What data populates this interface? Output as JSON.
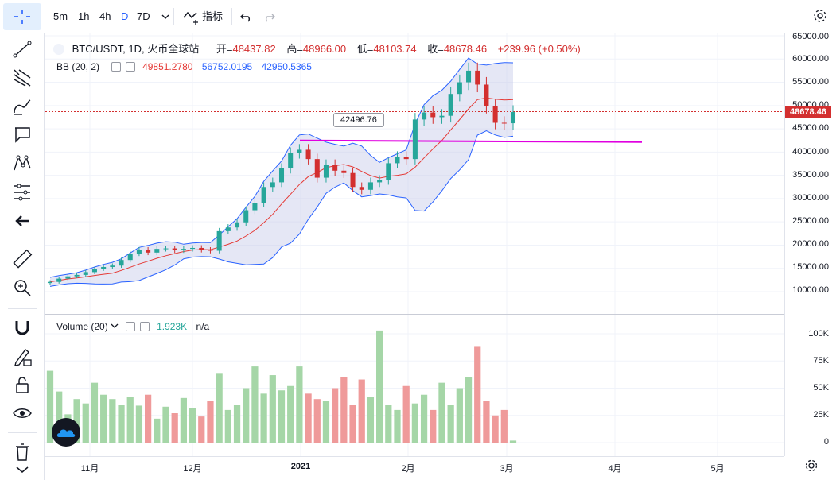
{
  "toolbar": {
    "intervals": [
      "5m",
      "1h",
      "4h",
      "D",
      "7D"
    ],
    "active_interval": "D",
    "indicators_label": "指标"
  },
  "legend": {
    "symbol": "BTC/USDT, 1D, 火币全球站",
    "open_label": "开=",
    "open": "48437.82",
    "high_label": "高=",
    "high": "48966.00",
    "low_label": "低=",
    "low": "48103.74",
    "close_label": "收=",
    "close": "48678.46",
    "change": "+239.96 (+0.50%)"
  },
  "bb": {
    "label": "BB (20, 2)",
    "basis": "49851.2780",
    "upper": "56752.0195",
    "lower": "42950.5365"
  },
  "volume": {
    "label": "Volume (20)",
    "value": "1.923K",
    "second": "n/a"
  },
  "price_axis": [
    "65000.00",
    "60000.00",
    "55000.00",
    "50000.00",
    "45000.00",
    "40000.00",
    "35000.00",
    "30000.00",
    "25000.00",
    "20000.00",
    "15000.00",
    "10000.00"
  ],
  "last_price": "48678.46",
  "volume_axis": [
    "100K",
    "75K",
    "50K",
    "25K",
    "0"
  ],
  "time_axis": [
    "11月",
    "12月",
    "2021",
    "2月",
    "3月",
    "4月",
    "5月"
  ],
  "callout": "42496.76",
  "colors": {
    "up": "#26a69a",
    "down": "#d32f2f",
    "bb_upper": "#2962ff",
    "bb_basis": "#e53935",
    "bb_fill": "#c5cae9",
    "hline": "#e000e0",
    "vol_up": "#a5d6a7",
    "vol_down": "#ef9a9a",
    "accent": "#2962ff"
  },
  "chart_data": {
    "type": "candlestick",
    "price_range": [
      5000,
      66000
    ],
    "volume_range": [
      0,
      105000
    ],
    "horizontal_line": 42496.76,
    "series": {
      "close": [
        12100,
        12800,
        13300,
        13600,
        14200,
        14900,
        15300,
        15600,
        16800,
        18200,
        19000,
        18400,
        19200,
        19300,
        18900,
        19200,
        19400,
        19000,
        18800,
        23000,
        23800,
        24900,
        27500,
        29000,
        32500,
        33500,
        36500,
        39800,
        40500,
        38500,
        34500,
        37300,
        36000,
        35500,
        32500,
        31900,
        33500,
        34000,
        37600,
        39000,
        38500,
        47000,
        48500,
        47500,
        47800,
        52500,
        55000,
        57500,
        54500,
        49800,
        46300,
        46200,
        48600
      ],
      "volume_k": [
        66,
        47,
        26,
        40,
        36,
        55,
        44,
        40,
        35,
        42,
        34,
        44,
        22,
        33,
        27,
        41,
        32,
        24,
        38,
        64,
        30,
        35,
        50,
        70,
        45,
        62,
        48,
        52,
        70,
        45,
        40,
        38,
        50,
        60,
        35,
        58,
        42,
        103,
        35,
        30,
        52,
        36,
        44,
        30,
        55,
        35,
        50,
        60,
        88,
        38,
        25,
        30,
        1.9
      ]
    }
  }
}
